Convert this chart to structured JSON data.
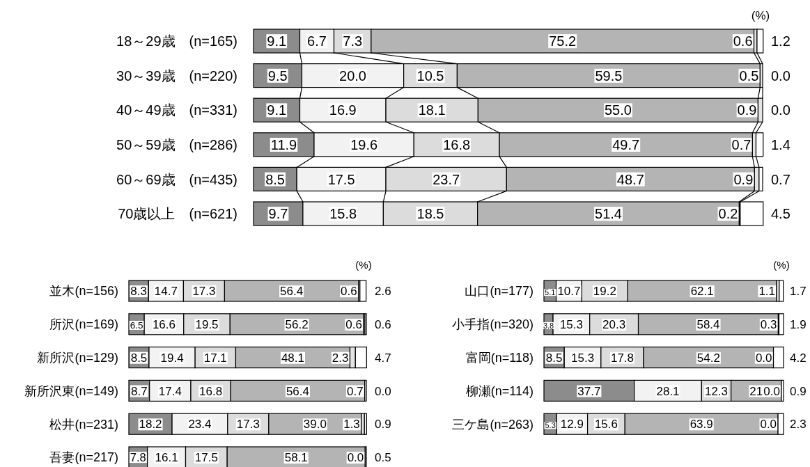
{
  "chart_data": [
    {
      "type": "bar",
      "orientation": "horizontal",
      "stacked": true,
      "xlim": [
        0,
        100
      ],
      "annotations": [
        "(%)"
      ],
      "categories": [
        "18～29歳　(n=165)",
        "30～39歳　(n=220)",
        "40～49歳　(n=331)",
        "50～59歳　(n=286)",
        "60～69歳　(n=435)",
        "70歳以上　(n=621)"
      ],
      "series": [
        {
          "color": "#8c8c8c",
          "values": [
            9.1,
            9.5,
            9.1,
            11.9,
            8.5,
            9.7
          ],
          "value_labels": [
            "9.1",
            "9.5",
            "9.1",
            "11.9",
            "8.5",
            "9.7"
          ]
        },
        {
          "color": "#f2f2f2",
          "values": [
            6.7,
            20.0,
            16.9,
            19.6,
            17.5,
            15.8
          ],
          "value_labels": [
            "6.7",
            "20.0",
            "16.9",
            "19.6",
            "17.5",
            "15.8"
          ]
        },
        {
          "color": "#dcdcdc",
          "values": [
            7.3,
            10.5,
            18.1,
            16.8,
            23.7,
            18.5
          ],
          "value_labels": [
            "7.3",
            "10.5",
            "18.1",
            "16.8",
            "23.7",
            "18.5"
          ]
        },
        {
          "color": "#b4b4b4",
          "values": [
            75.2,
            59.5,
            55.0,
            49.7,
            48.7,
            51.4
          ],
          "value_labels": [
            "75.2",
            "59.5",
            "55.0",
            "49.7",
            "48.7",
            "51.4"
          ]
        },
        {
          "color": "#e4e4e4",
          "values": [
            0.6,
            0.5,
            0.9,
            0.7,
            0.9,
            0.2
          ],
          "value_labels": [
            "0.6",
            "0.5",
            "0.9",
            "0.7",
            "0.9",
            "0.2"
          ]
        },
        {
          "color": "#ffffff",
          "values": [
            1.2,
            0.0,
            0.0,
            1.4,
            0.7,
            4.5
          ],
          "value_labels": [
            "1.2",
            "0.0",
            "0.0",
            "1.4",
            "0.7",
            "4.5"
          ]
        }
      ]
    },
    {
      "type": "bar",
      "orientation": "horizontal",
      "stacked": true,
      "xlim": [
        0,
        100
      ],
      "annotations": [
        "(%)"
      ],
      "categories": [
        "並木(n=156)",
        "所沢(n=169)",
        "新所沢(n=129)",
        "新所沢東(n=149)",
        "松井(n=231)",
        "吾妻(n=217)"
      ],
      "series": [
        {
          "color": "#8c8c8c",
          "values": [
            8.3,
            6.5,
            8.5,
            8.7,
            18.2,
            7.8
          ],
          "value_labels": [
            "8.3",
            "6.5",
            "8.5",
            "8.7",
            "18.2",
            "7.8"
          ]
        },
        {
          "color": "#f2f2f2",
          "values": [
            14.7,
            16.6,
            19.4,
            17.4,
            23.4,
            16.1
          ],
          "value_labels": [
            "14.7",
            "16.6",
            "19.4",
            "17.4",
            "23.4",
            "16.1"
          ]
        },
        {
          "color": "#dcdcdc",
          "values": [
            17.3,
            19.5,
            17.1,
            16.8,
            17.3,
            17.5
          ],
          "value_labels": [
            "17.3",
            "19.5",
            "17.1",
            "16.8",
            "17.3",
            "17.5"
          ]
        },
        {
          "color": "#b4b4b4",
          "values": [
            56.4,
            56.2,
            48.1,
            56.4,
            39.0,
            58.1
          ],
          "value_labels": [
            "56.4",
            "56.2",
            "48.1",
            "56.4",
            "39.0",
            "58.1"
          ]
        },
        {
          "color": "#e4e4e4",
          "values": [
            0.6,
            0.6,
            2.3,
            0.7,
            1.3,
            0.0
          ],
          "value_labels": [
            "0.6",
            "0.6",
            "2.3",
            "0.7",
            "1.3",
            "0.0"
          ]
        },
        {
          "color": "#ffffff",
          "values": [
            2.6,
            0.6,
            4.7,
            0.0,
            0.9,
            0.5
          ],
          "value_labels": [
            "2.6",
            "0.6",
            "4.7",
            "0.0",
            "0.9",
            "0.5"
          ]
        }
      ]
    },
    {
      "type": "bar",
      "orientation": "horizontal",
      "stacked": true,
      "xlim": [
        0,
        100
      ],
      "annotations": [
        "(%)"
      ],
      "categories": [
        "山口(n=177)",
        "小手指(n=320)",
        "富岡(n=118)",
        "柳瀬(n=114)",
        "三ケ島(n=263)"
      ],
      "series": [
        {
          "color": "#8c8c8c",
          "values": [
            5.1,
            3.8,
            8.5,
            37.7,
            5.3
          ],
          "value_labels": [
            "5.1",
            "3.8",
            "8.5",
            "37.7",
            "5.3"
          ]
        },
        {
          "color": "#f2f2f2",
          "values": [
            10.7,
            15.3,
            15.3,
            28.1,
            12.9
          ],
          "value_labels": [
            "10.7",
            "15.3",
            "15.3",
            "28.1",
            "12.9"
          ]
        },
        {
          "color": "#dcdcdc",
          "values": [
            19.2,
            20.3,
            17.8,
            12.3,
            15.6
          ],
          "value_labels": [
            "19.2",
            "20.3",
            "17.8",
            "12.3",
            "15.6"
          ]
        },
        {
          "color": "#b4b4b4",
          "values": [
            62.1,
            58.4,
            54.2,
            21.0,
            63.9
          ],
          "value_labels": [
            "62.1",
            "58.4",
            "54.2",
            "21",
            "63.9"
          ]
        },
        {
          "color": "#e4e4e4",
          "values": [
            1.1,
            0.3,
            0.0,
            0.0,
            0.0
          ],
          "value_labels": [
            "1.1",
            "0.3",
            "0.0",
            "0.0",
            "0.0"
          ]
        },
        {
          "color": "#ffffff",
          "values": [
            1.7,
            1.9,
            4.2,
            0.9,
            2.3
          ],
          "value_labels": [
            "1.7",
            "1.9",
            "4.2",
            "0.9",
            "2.3"
          ]
        }
      ]
    }
  ]
}
